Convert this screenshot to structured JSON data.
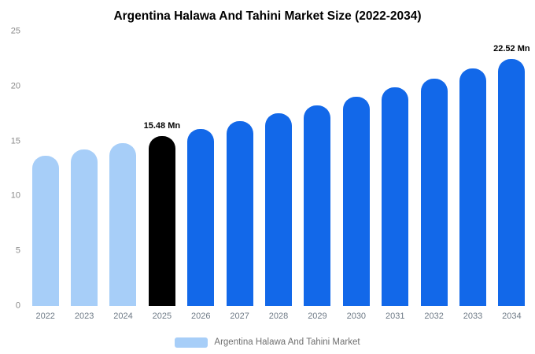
{
  "chart_data": {
    "type": "bar",
    "title": "Argentina Halawa And Tahini Market Size (2022-2034)",
    "categories": [
      "2022",
      "2023",
      "2024",
      "2025",
      "2026",
      "2027",
      "2028",
      "2029",
      "2030",
      "2031",
      "2032",
      "2033",
      "2034"
    ],
    "values": [
      13.66,
      14.24,
      14.85,
      15.48,
      16.14,
      16.83,
      17.54,
      18.29,
      19.07,
      19.88,
      20.72,
      21.6,
      22.52
    ],
    "bar_colors": [
      "#a7cef8",
      "#a7cef8",
      "#a7cef8",
      "#000000",
      "#1268e9",
      "#1268e9",
      "#1268e9",
      "#1268e9",
      "#1268e9",
      "#1268e9",
      "#1268e9",
      "#1268e9",
      "#1268e9"
    ],
    "xlabel": "",
    "ylabel": "",
    "ylim": [
      0,
      25
    ],
    "yticks": [
      0,
      5,
      10,
      15,
      20,
      25
    ],
    "grid": false,
    "annotations": [
      {
        "index": 3,
        "text": "15.48 Mn"
      },
      {
        "index": 12,
        "text": "22.52 Mn"
      }
    ],
    "legend": [
      {
        "label": "Argentina Halawa And Tahini Market",
        "color": "#a7cef8"
      }
    ],
    "legend_position": "bottom"
  },
  "colors": {
    "background": "#ffffff",
    "light_blue": "#a7cef8",
    "blue": "#1268e9",
    "black": "#000000",
    "axis_text": "#8a8a8a",
    "category_text": "#6e7a86",
    "legend_text": "#6f6f6f"
  }
}
